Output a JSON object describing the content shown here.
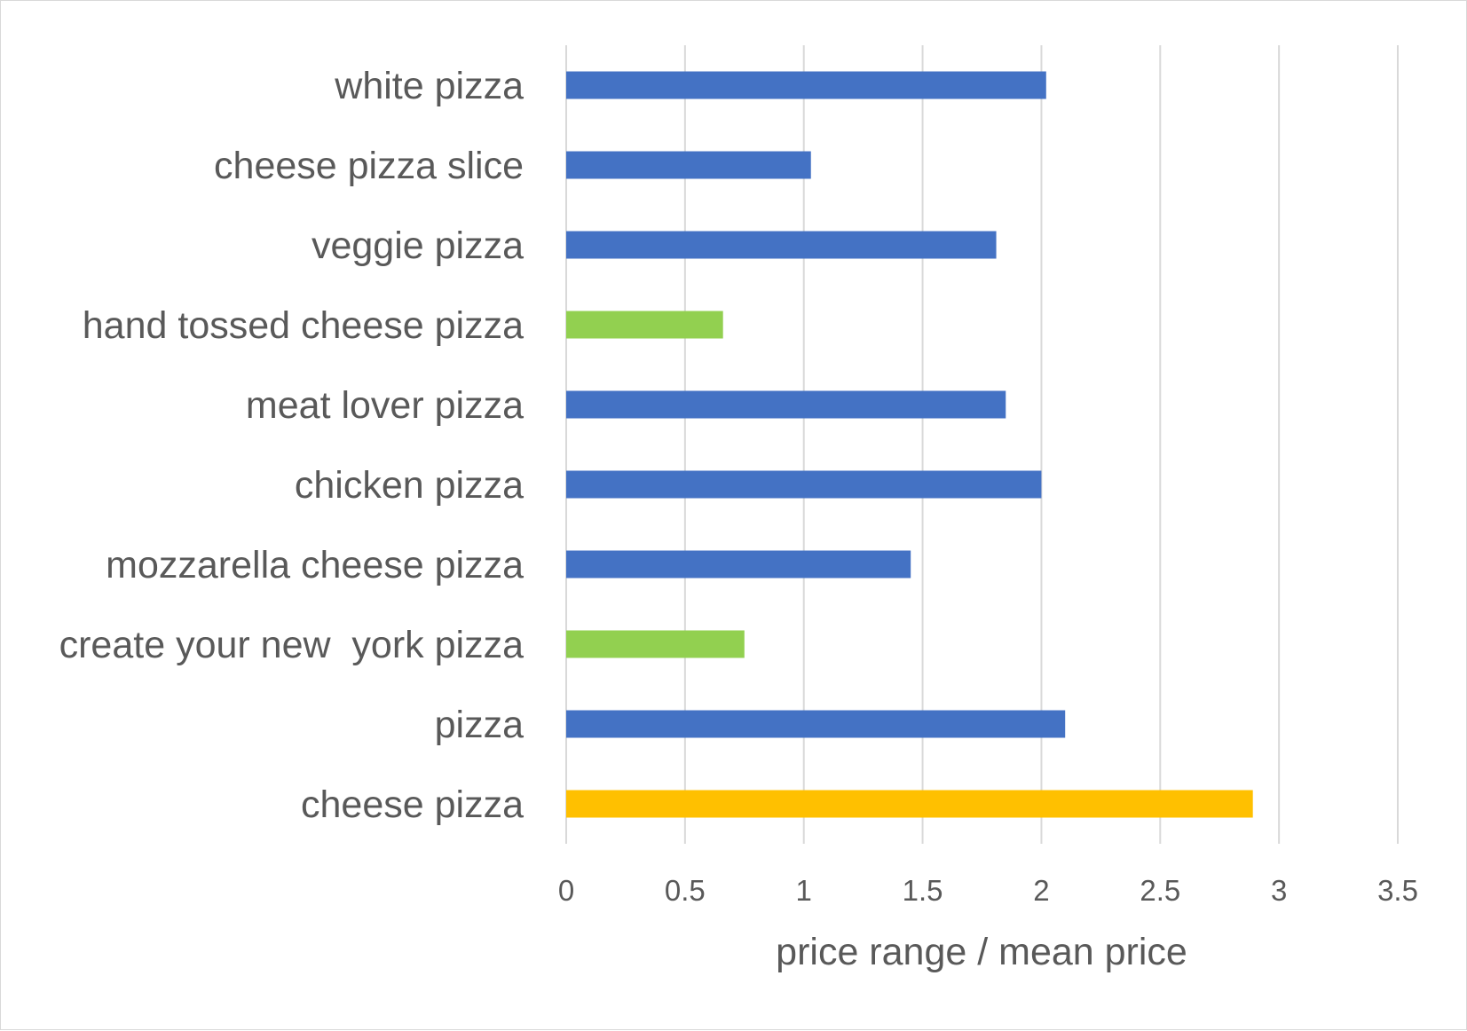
{
  "chart_data": {
    "type": "bar",
    "orientation": "horizontal",
    "categories": [
      "white pizza",
      "cheese pizza slice",
      "veggie pizza",
      "hand tossed cheese pizza",
      "meat lover pizza",
      "chicken pizza",
      "mozzarella cheese pizza",
      "create your new  york pizza",
      "pizza",
      "cheese pizza"
    ],
    "values": [
      2.02,
      1.03,
      1.81,
      0.66,
      1.85,
      2.0,
      1.45,
      0.75,
      2.1,
      2.89
    ],
    "bar_colors": [
      "#4472c4",
      "#4472c4",
      "#4472c4",
      "#92d050",
      "#4472c4",
      "#4472c4",
      "#4472c4",
      "#92d050",
      "#4472c4",
      "#ffc000"
    ],
    "xlabel": "price range / mean price",
    "ylabel": "",
    "xlim": [
      0,
      3.5
    ],
    "xticks": [
      "0",
      "0.5",
      "1",
      "1.5",
      "2",
      "2.5",
      "3",
      "3.5"
    ],
    "grid": "vertical gridlines",
    "legend": "none",
    "colors": {
      "grid": "#d9d9d9",
      "text": "#595959",
      "border": "#d9d9d9"
    }
  }
}
